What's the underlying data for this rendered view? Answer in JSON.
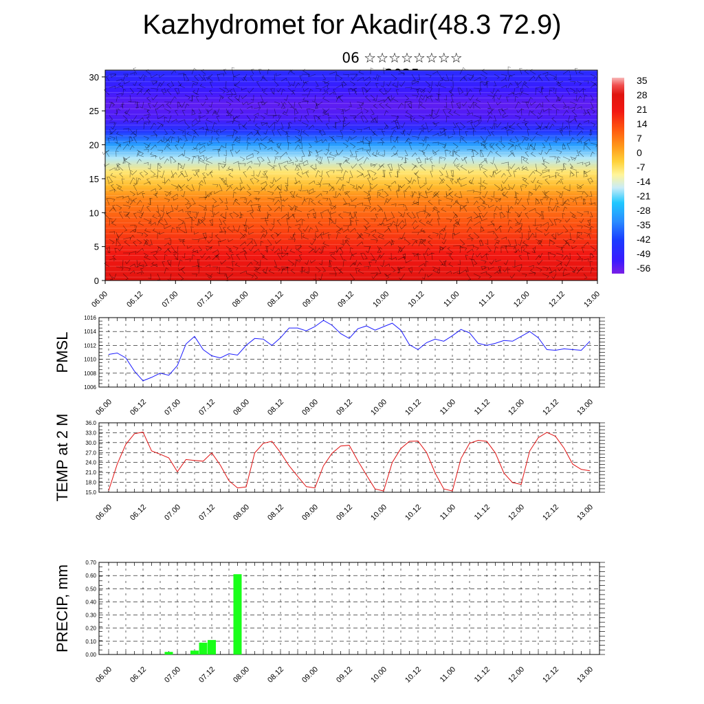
{
  "page": {
    "title": "Kazhydromet for Akadir(48.3 72.9)",
    "subtitle": "06 ☆☆☆☆☆☆☆☆ 2025"
  },
  "colors": {
    "pmsl_line": "#1a1aff",
    "temp_line": "#e01010",
    "precip_bar": "#19ff19",
    "grid": "#000000"
  },
  "chart_data": [
    {
      "type": "heatmap",
      "name": "height-time cross-section",
      "title": "",
      "xlabel": "",
      "ylabel": "",
      "x_tick_labels": [
        "06.00",
        "06.12",
        "07.00",
        "07.12",
        "08.00",
        "08.12",
        "09.00",
        "09.12",
        "10.00",
        "10.12",
        "11.00",
        "11.12",
        "12.00",
        "12.12",
        "13.00"
      ],
      "ylim": [
        0,
        31
      ],
      "y_ticks": [
        0,
        5,
        10,
        15,
        20,
        25,
        30
      ],
      "colorbar_labels": [
        "35",
        "28",
        "21",
        "14",
        "7",
        "0",
        "-7",
        "-14",
        "-21",
        "-28",
        "-35",
        "-42",
        "-49",
        "-56"
      ],
      "colorbar_range": [
        -63,
        42
      ],
      "temperature_profile": {
        "levels": [
          0,
          4,
          8,
          12,
          14,
          16,
          18,
          20,
          22,
          24,
          26,
          28,
          31
        ],
        "values": [
          32,
          24,
          16,
          8,
          0,
          -7,
          -18,
          -32,
          -48,
          -58,
          -60,
          -56,
          -50
        ]
      },
      "overlay": "wind barbs"
    },
    {
      "type": "line",
      "name": "PMSL",
      "ylabel": "PMSL",
      "ylim": [
        1006,
        1016
      ],
      "y_ticks": [
        "1006",
        "1008",
        "1010",
        "1012",
        "1014",
        "1016"
      ],
      "x_tick_labels": [
        "06.00",
        "06.12",
        "07.00",
        "07.12",
        "08.00",
        "08.12",
        "09.00",
        "09.12",
        "10.00",
        "10.12",
        "11.00",
        "11.12",
        "12.00",
        "12.12",
        "13.00"
      ],
      "x_step_hours": 3,
      "values": [
        1010.7,
        1010.9,
        1010.2,
        1008.3,
        1006.9,
        1007.4,
        1008.0,
        1007.7,
        1009.1,
        1012.2,
        1013.3,
        1011.4,
        1010.5,
        1010.2,
        1010.8,
        1010.6,
        1012.0,
        1013.0,
        1012.9,
        1012.0,
        1013.1,
        1014.5,
        1014.5,
        1014.1,
        1014.7,
        1015.6,
        1014.9,
        1013.7,
        1013.0,
        1014.4,
        1014.8,
        1014.2,
        1014.7,
        1015.2,
        1014.2,
        1012.1,
        1011.4,
        1012.4,
        1012.9,
        1012.6,
        1013.4,
        1014.3,
        1013.8,
        1012.3,
        1012.0,
        1012.3,
        1012.7,
        1012.6,
        1013.3,
        1014.0,
        1013.1,
        1011.4,
        1011.3,
        1011.5,
        1011.4,
        1011.3,
        1012.6
      ]
    },
    {
      "type": "line",
      "name": "TEMP at 2 M",
      "ylabel": "TEMP at 2 M",
      "ylim": [
        15,
        36
      ],
      "y_ticks": [
        "15.0",
        "18.0",
        "21.0",
        "24.0",
        "27.0",
        "30.0",
        "33.0",
        "36.0"
      ],
      "x_tick_labels": [
        "06.00",
        "06.12",
        "07.00",
        "07.12",
        "08.00",
        "08.12",
        "09.00",
        "09.12",
        "10.00",
        "10.12",
        "11.00",
        "11.12",
        "12.00",
        "12.12",
        "13.00"
      ],
      "x_step_hours": 3,
      "values": [
        15.5,
        23.5,
        29.5,
        32.7,
        33.2,
        27.5,
        26.5,
        25.4,
        21.2,
        24.9,
        24.6,
        24.4,
        26.9,
        23.2,
        18.5,
        16.3,
        16.6,
        26.9,
        29.8,
        30.4,
        27.0,
        23.0,
        19.8,
        16.7,
        16.3,
        23.0,
        26.8,
        29.0,
        29.2,
        24.5,
        20.2,
        16.0,
        15.4,
        24.0,
        28.2,
        30.4,
        30.5,
        27.0,
        20.8,
        16.0,
        15.4,
        25.2,
        29.8,
        30.7,
        30.4,
        26.9,
        20.8,
        17.9,
        17.4,
        27.5,
        31.5,
        33.1,
        31.9,
        28.3,
        23.5,
        21.9,
        21.5
      ]
    },
    {
      "type": "bar",
      "name": "PRECIP, mm",
      "ylabel": "PRECIP, mm",
      "ylim": [
        0,
        0.7
      ],
      "y_ticks": [
        "0.00",
        "0.10",
        "0.20",
        "0.30",
        "0.40",
        "0.50",
        "0.60",
        "0.70"
      ],
      "x_tick_labels": [
        "06.00",
        "06.12",
        "07.00",
        "07.12",
        "08.00",
        "08.12",
        "09.00",
        "09.12",
        "10.00",
        "10.12",
        "11.00",
        "11.12",
        "12.00",
        "12.12",
        "13.00"
      ],
      "x_step_hours": 3,
      "bars": [
        {
          "hour": 21,
          "value": 0.02
        },
        {
          "hour": 30,
          "value": 0.03
        },
        {
          "hour": 33,
          "value": 0.09
        },
        {
          "hour": 36,
          "value": 0.11
        },
        {
          "hour": 45,
          "value": 0.61
        }
      ]
    }
  ]
}
